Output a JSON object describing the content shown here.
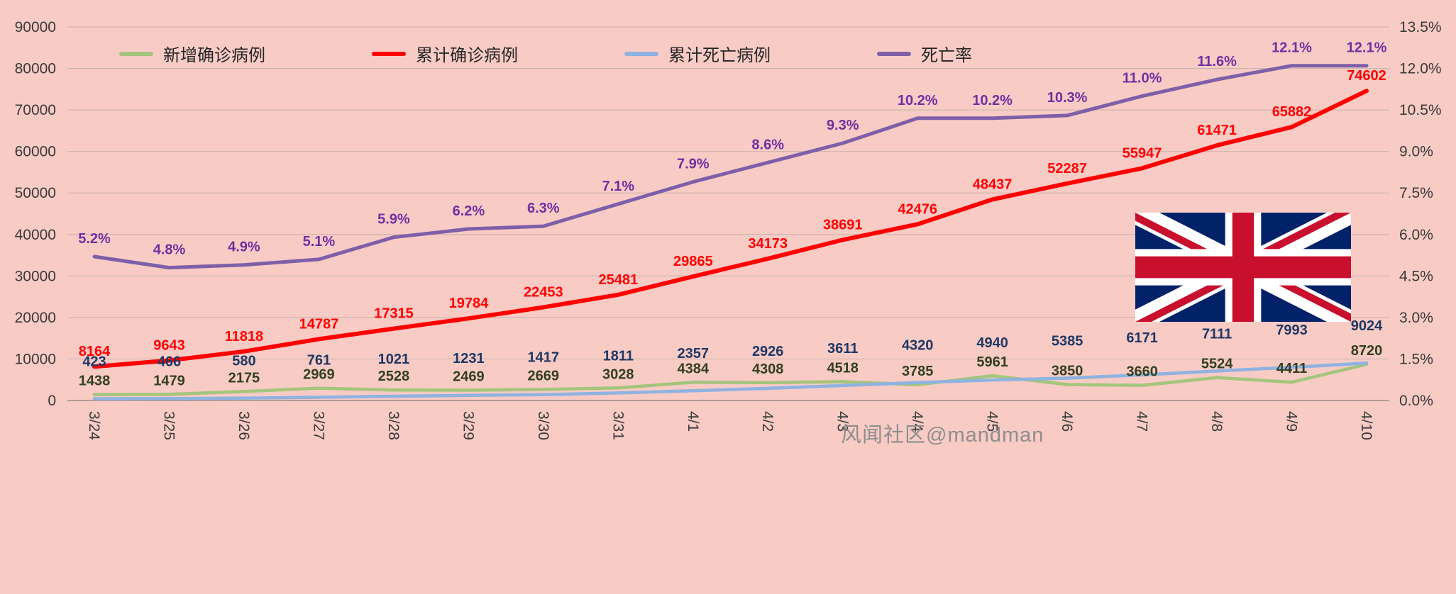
{
  "chart_data": {
    "type": "line",
    "title": "",
    "categories": [
      "3/24",
      "3/25",
      "3/26",
      "3/27",
      "3/28",
      "3/29",
      "3/30",
      "3/31",
      "4/1",
      "4/2",
      "4/3",
      "4/4",
      "4/5",
      "4/6",
      "4/7",
      "4/8",
      "4/9",
      "4/10"
    ],
    "series": [
      {
        "name": "新增确诊病例",
        "color": "#a3c57d",
        "label_color": "#33401f",
        "axis": "left",
        "values": [
          1438,
          1479,
          2175,
          2969,
          2528,
          2469,
          2669,
          3028,
          4384,
          4308,
          4518,
          3785,
          5961,
          3850,
          3660,
          5524,
          4411,
          8720
        ]
      },
      {
        "name": "累计确诊病例",
        "color": "#fe0000",
        "label_color": "#fe0000",
        "axis": "left",
        "values": [
          8164,
          9643,
          11818,
          14787,
          17315,
          19784,
          22453,
          25481,
          29865,
          34173,
          38691,
          42476,
          48437,
          52287,
          55947,
          61471,
          65882,
          74602
        ]
      },
      {
        "name": "累计死亡病例",
        "color": "#8fb3e0",
        "label_color": "#1f3864",
        "axis": "left",
        "values": [
          423,
          466,
          580,
          761,
          1021,
          1231,
          1417,
          1811,
          2357,
          2926,
          3611,
          4320,
          4940,
          5385,
          6171,
          7111,
          7993,
          9024
        ]
      },
      {
        "name": "死亡率",
        "color": "#7e5fa8",
        "label_color": "#7030a0",
        "axis": "right",
        "values": [
          5.2,
          4.8,
          4.9,
          5.1,
          5.9,
          6.2,
          6.3,
          7.1,
          7.9,
          8.6,
          9.3,
          10.2,
          10.2,
          10.3,
          11.0,
          11.6,
          12.1,
          12.1
        ],
        "labels": [
          "5.2%",
          "4.8%",
          "4.9%",
          "5.1%",
          "5.9%",
          "6.2%",
          "6.3%",
          "7.1%",
          "7.9%",
          "8.6%",
          "9.3%",
          "10.2%",
          "10.2%",
          "10.3%",
          "11.0%",
          "11.6%",
          "12.1%",
          "12.1%"
        ]
      }
    ],
    "left_axis": {
      "min": 0,
      "max": 90000,
      "ticks": [
        "90000",
        "80000",
        "70000",
        "60000",
        "50000",
        "40000",
        "30000",
        "20000",
        "10000",
        "0"
      ]
    },
    "right_axis": {
      "min": 0,
      "max": 13.5,
      "ticks": [
        "13.5%",
        "12.0%",
        "10.5%",
        "9.0%",
        "7.5%",
        "6.0%",
        "4.5%",
        "3.0%",
        "1.5%",
        "0.0%"
      ]
    },
    "grid": true,
    "legend_position": "top"
  },
  "watermark": "风闻社区@mandman",
  "colors": {
    "background": "#f8cbc5",
    "grid": "#c8b0ad",
    "axis_baseline": "#a08c8a",
    "axis_text": "#3a3a3a"
  },
  "flag": {
    "name": "uk-flag",
    "blue": "#012169",
    "red": "#C8102E",
    "white": "#ffffff"
  }
}
